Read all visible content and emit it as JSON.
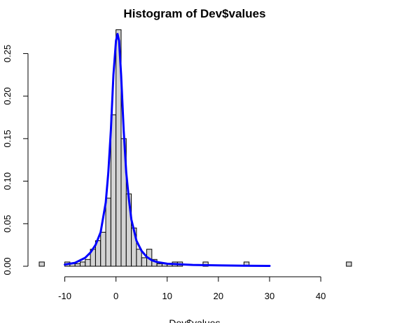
{
  "chart_data": {
    "type": "bar",
    "title": "Histogram of Dev$values",
    "xlabel": "Dev$values",
    "ylabel": "",
    "xlim": [
      -15,
      46
    ],
    "ylim": [
      0,
      0.28
    ],
    "x_ticks": [
      -10,
      0,
      10,
      20,
      30,
      40
    ],
    "x_tick_labels": [
      "-10",
      "0",
      "10",
      "20",
      "30",
      "40"
    ],
    "y_ticks": [
      0.0,
      0.05,
      0.1,
      0.15,
      0.2,
      0.25
    ],
    "y_tick_labels": [
      "0.00",
      "0.05",
      "0.10",
      "0.15",
      "0.20",
      "0.25"
    ],
    "bin_width": 1,
    "bars": [
      {
        "x0": -15,
        "x1": -14,
        "density": 0.005
      },
      {
        "x0": -10,
        "x1": -9,
        "density": 0.005
      },
      {
        "x0": -9,
        "x1": -8,
        "density": 0.003
      },
      {
        "x0": -8,
        "x1": -7,
        "density": 0.003
      },
      {
        "x0": -7,
        "x1": -6,
        "density": 0.005
      },
      {
        "x0": -6,
        "x1": -5,
        "density": 0.008
      },
      {
        "x0": -5,
        "x1": -4,
        "density": 0.02
      },
      {
        "x0": -4,
        "x1": -3,
        "density": 0.03
      },
      {
        "x0": -3,
        "x1": -2,
        "density": 0.04
      },
      {
        "x0": -2,
        "x1": -1,
        "density": 0.08
      },
      {
        "x0": -1,
        "x1": 0,
        "density": 0.178
      },
      {
        "x0": 0,
        "x1": 1,
        "density": 0.278
      },
      {
        "x0": 1,
        "x1": 2,
        "density": 0.15
      },
      {
        "x0": 2,
        "x1": 3,
        "density": 0.085
      },
      {
        "x0": 3,
        "x1": 4,
        "density": 0.045
      },
      {
        "x0": 4,
        "x1": 5,
        "density": 0.02
      },
      {
        "x0": 5,
        "x1": 6,
        "density": 0.01
      },
      {
        "x0": 6,
        "x1": 7,
        "density": 0.02
      },
      {
        "x0": 7,
        "x1": 8,
        "density": 0.008
      },
      {
        "x0": 8,
        "x1": 9,
        "density": 0.003
      },
      {
        "x0": 9,
        "x1": 10,
        "density": 0.003
      },
      {
        "x0": 10,
        "x1": 11,
        "density": 0.003
      },
      {
        "x0": 11,
        "x1": 12,
        "density": 0.005
      },
      {
        "x0": 12,
        "x1": 13,
        "density": 0.005
      },
      {
        "x0": 17,
        "x1": 18,
        "density": 0.005
      },
      {
        "x0": 25,
        "x1": 26,
        "density": 0.005
      },
      {
        "x0": 45,
        "x1": 46,
        "density": 0.005
      }
    ],
    "density_curve": {
      "color": "#0000ff",
      "x": [
        -10,
        -8,
        -6,
        -5,
        -4,
        -3,
        -2,
        -1.5,
        -1,
        -0.5,
        0,
        0.3,
        0.6,
        1,
        1.5,
        2,
        2.5,
        3,
        4,
        5,
        6,
        7,
        8,
        10,
        15,
        20,
        25,
        30
      ],
      "y": [
        0.002,
        0.004,
        0.01,
        0.016,
        0.025,
        0.04,
        0.075,
        0.11,
        0.16,
        0.225,
        0.265,
        0.273,
        0.265,
        0.225,
        0.16,
        0.11,
        0.08,
        0.055,
        0.03,
        0.018,
        0.011,
        0.007,
        0.005,
        0.003,
        0.0015,
        0.001,
        0.0006,
        0.0004
      ]
    },
    "bar_fill": "#d3d3d3",
    "bar_stroke": "#000000",
    "grid": false,
    "legend": "none"
  }
}
